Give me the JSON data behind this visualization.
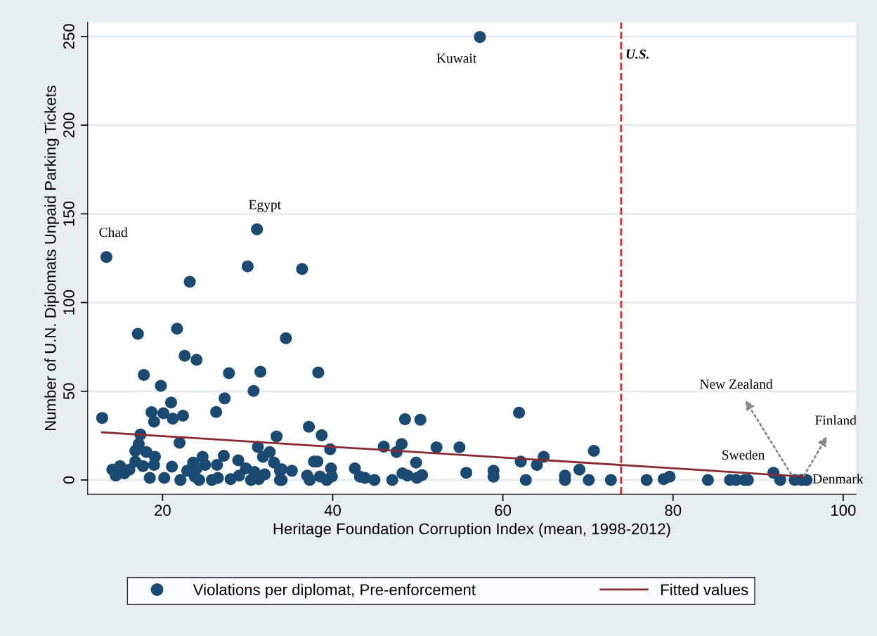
{
  "chart_data": {
    "type": "scatter",
    "xlabel": "Heritage Foundation Corruption Index (mean, 1998-2012)",
    "ylabel": "Number of U.N. Diplomats Unpaid Parking Tickets",
    "xlim": [
      11.2,
      101.5
    ],
    "ylim": [
      -8,
      258
    ],
    "xticks": [
      20,
      40,
      60,
      80,
      100
    ],
    "yticks": [
      0,
      50,
      100,
      150,
      200,
      250
    ],
    "grid": "y",
    "legend": "bottom",
    "series": [
      {
        "name": "Violations per diplomat, Pre-enforcement",
        "type": "scatter",
        "marker": "circle",
        "color": "#1a4a72",
        "x": [
          57.3,
          13.4,
          31.1,
          30.0,
          36.4,
          23.2,
          17.1,
          21.7,
          34.5,
          22.6,
          24.0,
          17.8,
          27.8,
          31.5,
          38.3,
          19.8,
          30.7,
          21.0,
          27.3,
          12.9,
          18.7,
          20.1,
          21.2,
          22.4,
          19.0,
          26.3,
          37.2,
          38.7,
          17.4,
          33.4,
          22.0,
          39.7,
          31.2,
          48.5,
          50.3,
          61.9,
          46.0,
          48.1,
          47.5,
          52.2,
          54.9,
          49.8,
          70.7,
          62.1,
          64.8,
          64.0,
          69.0,
          67.3,
          67.3,
          70.1,
          62.7,
          58.9,
          58.9,
          55.7,
          37.8,
          38.2,
          39.8,
          35.2,
          42.6,
          43.2,
          43.8,
          44.9,
          47.0,
          48.2,
          48.8,
          49.9,
          50.5,
          34.0,
          34.0,
          37.0,
          37.3,
          38.5,
          39.3,
          39.9,
          72.7,
          76.9,
          78.9,
          79.6,
          84.1,
          86.7,
          87.4,
          88.4,
          88.8,
          91.8,
          92.6,
          94.3,
          95.1,
          95.7,
          14.1,
          14.5,
          15.0,
          15.5,
          16.1,
          16.8,
          17.2,
          16.8,
          17.7,
          18.1,
          18.5,
          19.1,
          19.0,
          20.2,
          21.1,
          22.1,
          22.9,
          23.6,
          24.0,
          24.3,
          24.7,
          23.8,
          25.0,
          25.8,
          26.5,
          26.4,
          27.2,
          28.0,
          28.9,
          29.0,
          29.8,
          30.4,
          30.8,
          31.3,
          31.8,
          32.0,
          32.6,
          33.1,
          33.8,
          33.8
        ],
        "values": [
          249.7,
          125.7,
          141.3,
          120.4,
          118.9,
          111.7,
          82.4,
          85.3,
          79.9,
          70.0,
          67.7,
          59.2,
          60.2,
          61.0,
          60.6,
          53.1,
          50.2,
          43.7,
          46.0,
          35.0,
          38.2,
          37.6,
          34.6,
          36.2,
          32.9,
          38.3,
          30.0,
          25.2,
          25.6,
          24.6,
          21.0,
          17.3,
          18.6,
          34.3,
          34.0,
          37.9,
          18.8,
          20.3,
          15.7,
          18.4,
          18.4,
          9.8,
          16.4,
          10.4,
          13.1,
          8.5,
          5.8,
          2.5,
          0,
          0,
          0,
          5.2,
          1.9,
          4.1,
          10.4,
          10.4,
          6.5,
          5.2,
          6.5,
          1.9,
          1.2,
          0,
          0,
          3.8,
          2.5,
          1.2,
          2.8,
          6,
          0,
          2.5,
          0,
          2,
          0,
          2,
          0,
          0,
          0.5,
          1.9,
          0,
          0,
          0,
          0,
          0,
          4.1,
          0,
          0,
          0,
          0,
          5.8,
          2.5,
          7.8,
          3.8,
          5.8,
          10.4,
          20.3,
          16.4,
          7.8,
          15.7,
          1.2,
          13.1,
          8.5,
          1.2,
          7.5,
          0,
          5.2,
          9.8,
          6.5,
          0,
          13.1,
          1.9,
          8.5,
          0,
          1.2,
          8.5,
          13.7,
          0.5,
          11.1,
          2.5,
          6.5,
          0,
          4.5,
          0.5,
          13.1,
          3.2,
          15.7,
          9.8,
          5.2,
          0
        ]
      },
      {
        "name": "Fitted values",
        "type": "line",
        "marker": "none",
        "line_style": "solid",
        "color": "#8b2a32",
        "x": [
          12.9,
          95.5
        ],
        "values": [
          26.9,
          1.9
        ]
      }
    ],
    "ref_lines": [
      {
        "axis": "x",
        "value": 73.9,
        "label": "U.S.",
        "color": "#e8232a",
        "line_style": "dashed"
      }
    ],
    "annotations": [
      {
        "text": "Kuwait",
        "x": 57.3,
        "y": 249.7
      },
      {
        "text": "Chad",
        "x": 13.4,
        "y": 125.7
      },
      {
        "text": "Egypt",
        "x": 31.1,
        "y": 141.3
      },
      {
        "text": "Sweden",
        "x": 91.8,
        "y": 4.1
      },
      {
        "text": "Denmark",
        "x": 95.7,
        "y": 0
      },
      {
        "text": "New Zealand",
        "x": 94.3,
        "y": 0
      },
      {
        "text": "Finland",
        "x": 95.1,
        "y": 0
      }
    ]
  }
}
